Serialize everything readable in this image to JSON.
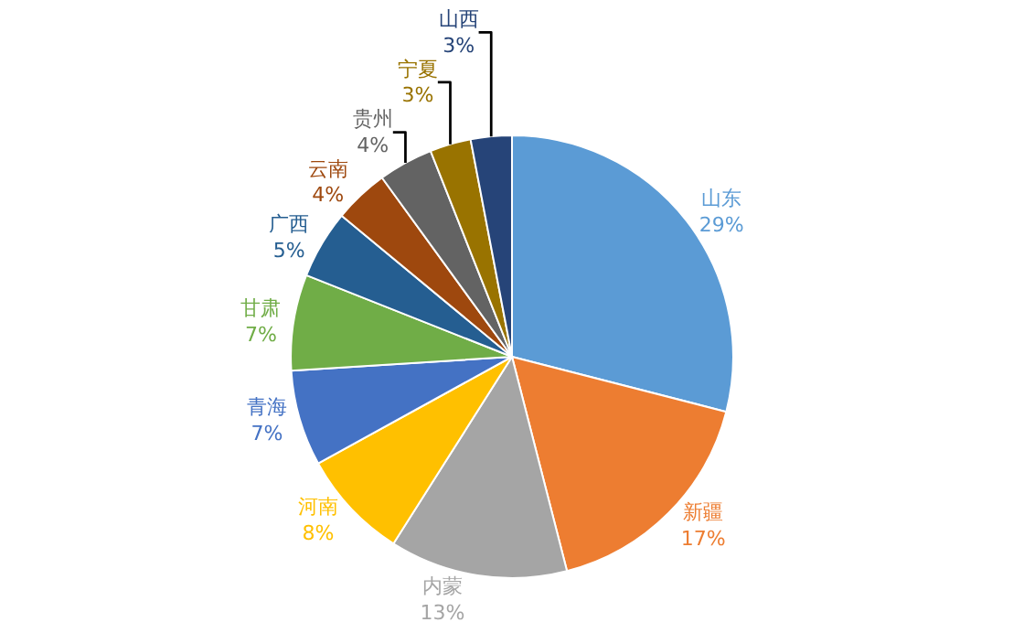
{
  "chart_data": {
    "type": "pie",
    "categories": [
      "山东",
      "新疆",
      "内蒙",
      "河南",
      "青海",
      "甘肃",
      "广西",
      "云南",
      "贵州",
      "宁夏",
      "山西"
    ],
    "values": [
      29,
      17,
      13,
      8,
      7,
      7,
      5,
      4,
      4,
      3,
      3
    ],
    "value_labels": [
      "29%",
      "17%",
      "13%",
      "8%",
      "7%",
      "7%",
      "5%",
      "4%",
      "4%",
      "3%",
      "3%"
    ],
    "colors": [
      "#5b9bd5",
      "#ed7d31",
      "#a5a5a5",
      "#ffc000",
      "#4472c4",
      "#70ad47",
      "#255e91",
      "#9e480e",
      "#636363",
      "#997300",
      "#264478"
    ],
    "legend": false
  }
}
